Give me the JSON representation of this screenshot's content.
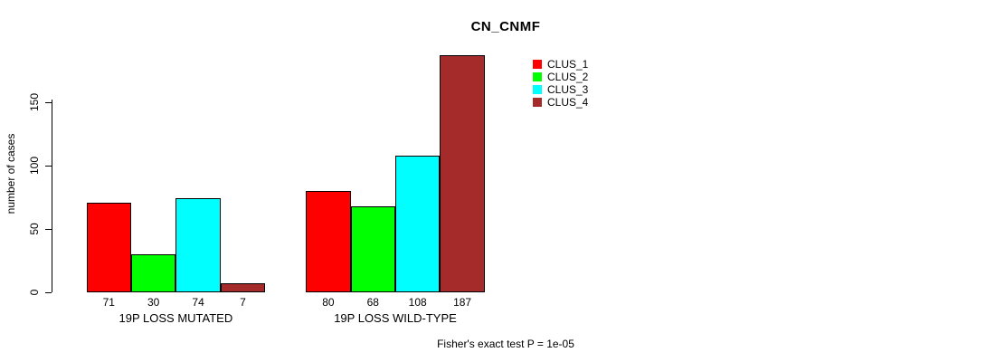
{
  "page": {
    "background_color": "#ffffff"
  },
  "chart_data": {
    "type": "bar",
    "title": "CN_CNMF",
    "ylabel": "number of cases",
    "ylim": [
      0,
      150
    ],
    "yticks": [
      0,
      50,
      100,
      150
    ],
    "grid": false,
    "legend_position": "top-right",
    "categories": [
      "19P LOSS MUTATED",
      "19P LOSS WILD-TYPE"
    ],
    "series": [
      {
        "name": "CLUS_1",
        "color": "#ff0000",
        "values": [
          71,
          80
        ]
      },
      {
        "name": "CLUS_2",
        "color": "#00ff00",
        "values": [
          30,
          68
        ]
      },
      {
        "name": "CLUS_3",
        "color": "#00ffff",
        "values": [
          74,
          108
        ]
      },
      {
        "name": "CLUS_4",
        "color": "#a52a2a",
        "values": [
          7,
          187
        ]
      }
    ],
    "bar_value_labels": [
      [
        71,
        30,
        74,
        7
      ],
      [
        80,
        68,
        108,
        187
      ]
    ],
    "annotation": "Fisher's exact test P = 1e-05"
  }
}
